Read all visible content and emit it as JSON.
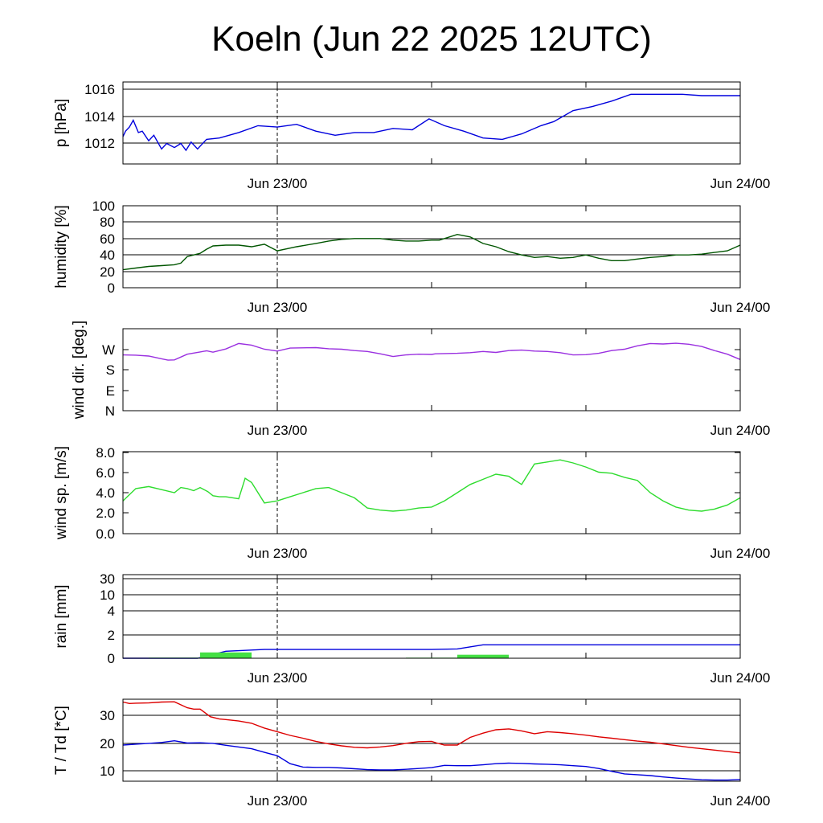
{
  "title": "Koeln (Jun 22 2025 12UTC)",
  "x_tick_labels": [
    "Jun 23/00",
    "Jun 24/00"
  ],
  "chart_data": [
    {
      "type": "line",
      "ylabel": "p [hPa]",
      "ylim": [
        1010.5,
        1016.5
      ],
      "yticks": [
        "1012",
        "1014",
        "1016"
      ],
      "grid": true,
      "x_range_hours": [
        12,
        60
      ],
      "x_tick_labels": [
        "Jun 23/00",
        "Jun 24/00"
      ],
      "series": [
        {
          "color": "#0000dd",
          "x": [
            12,
            12.2,
            12.5,
            12.8,
            13.2,
            13.5,
            14,
            14.4,
            15,
            15.4,
            16,
            16.5,
            16.9,
            17.3,
            17.8,
            18.5,
            19.5,
            21,
            22.5,
            24,
            25.5,
            27,
            28.5,
            30,
            31.5,
            33,
            34.5,
            35.8,
            37,
            38.5,
            40,
            41.5,
            43,
            44.5,
            45.5,
            47,
            48.5,
            50,
            51.5,
            52.5,
            54,
            55.5,
            57,
            58.5,
            60
          ],
          "y": [
            1012.5,
            1012.9,
            1013.2,
            1013.7,
            1012.8,
            1012.9,
            1012.2,
            1012.6,
            1011.6,
            1012.0,
            1011.7,
            1012.0,
            1011.5,
            1012.1,
            1011.6,
            1012.3,
            1012.4,
            1012.8,
            1013.3,
            1013.2,
            1013.4,
            1012.9,
            1012.6,
            1012.8,
            1012.8,
            1013.1,
            1013.0,
            1013.8,
            1013.3,
            1012.9,
            1012.4,
            1012.3,
            1012.7,
            1013.3,
            1013.6,
            1014.4,
            1014.7,
            1015.1,
            1015.6,
            1015.6,
            1015.6,
            1015.6,
            1015.5,
            1015.5,
            1015.5
          ]
        }
      ]
    },
    {
      "type": "line",
      "ylabel": "humidity [%]",
      "ylim": [
        0,
        100
      ],
      "yticks": [
        "0",
        "20",
        "40",
        "60",
        "80",
        "100"
      ],
      "grid": true,
      "x_range_hours": [
        12,
        60
      ],
      "x_tick_labels": [
        "Jun 23/00",
        "Jun 24/00"
      ],
      "series": [
        {
          "color": "#005500",
          "x": [
            12,
            13,
            14,
            15,
            16,
            16.5,
            17,
            18,
            18.5,
            19,
            20,
            21,
            22,
            23,
            24,
            25.5,
            27,
            28,
            29,
            30,
            31,
            32,
            33,
            34,
            35,
            36,
            36.6,
            37,
            38,
            39,
            40,
            41,
            42,
            43,
            44,
            45,
            46,
            47,
            48,
            49,
            50,
            51,
            52,
            53,
            54,
            55,
            56,
            57,
            58,
            59,
            60
          ],
          "y": [
            22,
            24,
            26,
            27,
            28,
            30,
            38,
            42,
            47,
            51,
            52,
            52,
            50,
            53,
            45,
            50,
            54,
            57,
            59,
            60,
            60,
            60,
            58,
            57,
            57,
            58,
            58,
            60,
            65,
            62,
            54,
            50,
            44,
            40,
            37,
            38,
            36,
            37,
            40,
            36,
            33,
            33,
            35,
            37,
            38,
            40,
            40,
            41,
            43,
            45,
            52
          ]
        }
      ]
    },
    {
      "type": "line",
      "ylabel": "wind dir. [deg.]",
      "ylim": [
        0,
        360
      ],
      "yticks": [
        "N",
        "E",
        "S",
        "W"
      ],
      "grid": false,
      "x_range_hours": [
        12,
        60
      ],
      "x_tick_labels": [
        "Jun 23/00",
        "Jun 24/00"
      ],
      "series": [
        {
          "color": "#9a30e0",
          "x": [
            12,
            13,
            14,
            15,
            15.5,
            16,
            17,
            18,
            18.5,
            19,
            20,
            21,
            22,
            23,
            24,
            25,
            27,
            28,
            29,
            30,
            31,
            32,
            33,
            34,
            35,
            36,
            36.3,
            37,
            38,
            39,
            40,
            41,
            42,
            43,
            44,
            45,
            46,
            47,
            48,
            49,
            50,
            51,
            52,
            53,
            54,
            55,
            56,
            57,
            58,
            59,
            60
          ],
          "y": [
            245,
            244,
            240,
            228,
            222,
            223,
            248,
            258,
            263,
            257,
            271,
            295,
            288,
            270,
            262,
            275,
            277,
            272,
            270,
            264,
            260,
            250,
            238,
            245,
            248,
            247,
            250,
            251,
            252,
            255,
            260,
            256,
            264,
            266,
            262,
            260,
            255,
            245,
            246,
            252,
            264,
            270,
            285,
            295,
            293,
            296,
            292,
            282,
            264,
            248,
            225
          ]
        }
      ]
    },
    {
      "type": "line",
      "ylabel": "wind sp. [m/s]",
      "ylim": [
        0,
        8
      ],
      "yticks": [
        "0.0",
        "2.0",
        "4.0",
        "6.0",
        "8.0"
      ],
      "grid": false,
      "x_range_hours": [
        12,
        60
      ],
      "x_tick_labels": [
        "Jun 23/00",
        "Jun 24/00"
      ],
      "series": [
        {
          "color": "#2edc2e",
          "x": [
            12,
            12.5,
            13,
            14,
            15,
            16,
            16.5,
            17,
            17.5,
            18,
            18.6,
            19,
            19.5,
            20,
            21,
            21.5,
            22,
            23,
            24,
            25,
            26,
            27,
            28,
            29,
            30,
            31,
            32,
            33,
            34,
            35,
            36,
            37,
            38,
            39,
            40,
            41,
            42,
            43,
            44,
            45,
            46,
            47,
            48,
            49,
            50,
            51,
            52,
            53,
            54,
            55,
            56,
            57,
            58,
            59,
            60
          ],
          "y": [
            3.2,
            3.8,
            4.4,
            4.6,
            4.3,
            4.0,
            4.5,
            4.4,
            4.2,
            4.5,
            4.1,
            3.7,
            3.6,
            3.6,
            3.4,
            5.4,
            5.0,
            3.0,
            3.2,
            3.6,
            4.0,
            4.4,
            4.5,
            4.0,
            3.5,
            2.5,
            2.3,
            2.2,
            2.3,
            2.5,
            2.6,
            3.2,
            4.0,
            4.8,
            5.3,
            5.8,
            5.6,
            4.8,
            6.8,
            7.0,
            7.2,
            6.9,
            6.5,
            6.0,
            5.9,
            5.5,
            5.2,
            4.0,
            3.2,
            2.6,
            2.3,
            2.2,
            2.4,
            2.8,
            3.5
          ]
        }
      ]
    },
    {
      "type": "bar",
      "ylabel": "rain [mm]",
      "ylim": [
        0,
        35
      ],
      "yticks": [
        "0",
        "2",
        "4",
        "10",
        "30"
      ],
      "grid": true,
      "x_range_hours": [
        12,
        60
      ],
      "x_tick_labels": [
        "Jun 23/00",
        "Jun 24/00"
      ],
      "series": [
        {
          "type": "line",
          "color": "#0000dd",
          "x": [
            12,
            17.8,
            20,
            23,
            36,
            38,
            40,
            60
          ],
          "y": [
            0,
            0,
            0.6,
            0.75,
            0.75,
            0.8,
            1.15,
            1.15
          ]
        },
        {
          "type": "bar",
          "color": "#44e044",
          "x_start": [
            14,
            18,
            22,
            26,
            30,
            34,
            38,
            42,
            46,
            50,
            54,
            58
          ],
          "x_end": [
            18,
            22,
            26,
            30,
            34,
            38,
            42,
            46,
            50,
            54,
            58,
            60
          ],
          "values": [
            0.05,
            0.5,
            0,
            0,
            0,
            0.05,
            0.3,
            0,
            0,
            0,
            0,
            0
          ]
        }
      ]
    },
    {
      "type": "line",
      "ylabel": "T / Td [*C]",
      "ylim": [
        6,
        35
      ],
      "yticks": [
        "10",
        "20",
        "30"
      ],
      "grid": true,
      "x_range_hours": [
        12,
        60
      ],
      "x_tick_labels": [
        "Jun 23/00",
        "Jun 24/00"
      ],
      "series": [
        {
          "color": "#dd0000",
          "x": [
            12,
            12.5,
            13,
            14,
            15,
            16,
            17,
            17.5,
            18,
            18.8,
            19.5,
            20,
            21,
            22,
            23,
            24,
            25,
            26,
            27,
            28,
            29,
            30,
            31,
            32,
            33,
            34,
            35,
            36,
            36.4,
            37,
            38,
            39,
            40,
            41,
            42,
            43,
            44,
            45,
            46,
            47,
            48,
            49,
            50,
            51,
            52,
            53,
            54,
            55,
            56,
            57,
            58,
            59,
            60
          ],
          "y": [
            34,
            33.5,
            33.6,
            33.7,
            34.0,
            34.1,
            32.0,
            31.5,
            31.5,
            28.8,
            28.0,
            27.8,
            27.3,
            26.5,
            24.8,
            23.5,
            22.2,
            21.2,
            20.1,
            19.2,
            18.5,
            18.0,
            17.8,
            18.1,
            18.6,
            19.4,
            20.0,
            20.1,
            19.5,
            18.8,
            18.8,
            21.5,
            23.0,
            24.2,
            24.5,
            23.8,
            22.8,
            23.5,
            23.2,
            22.8,
            22.3,
            21.7,
            21.2,
            20.7,
            20.2,
            19.8,
            19.2,
            18.6,
            18.0,
            17.5,
            17.0,
            16.5,
            16.0
          ]
        },
        {
          "color": "#0000dd",
          "x": [
            12,
            13,
            14,
            15,
            16,
            17,
            18,
            19,
            20,
            21,
            22,
            23,
            24,
            25,
            26,
            27,
            28,
            29,
            30,
            31,
            32,
            33,
            34,
            35,
            36,
            37,
            38,
            39,
            40,
            41,
            42,
            43,
            44,
            45,
            46,
            47,
            48,
            49,
            50,
            51,
            52,
            53,
            54,
            55,
            56,
            57,
            58,
            59,
            60
          ],
          "y": [
            18.8,
            19.1,
            19.4,
            19.7,
            20.3,
            19.5,
            19.6,
            19.4,
            18.7,
            18.1,
            17.5,
            16.2,
            15.0,
            12.2,
            11.0,
            10.9,
            10.9,
            10.7,
            10.4,
            10.1,
            10.0,
            10.0,
            10.2,
            10.5,
            10.8,
            11.6,
            11.5,
            11.5,
            11.8,
            12.2,
            12.4,
            12.3,
            12.1,
            12.0,
            11.8,
            11.5,
            11.2,
            10.5,
            9.5,
            8.6,
            8.3,
            8.0,
            7.5,
            7.1,
            6.8,
            6.5,
            6.4,
            6.4,
            6.6
          ]
        }
      ]
    }
  ]
}
